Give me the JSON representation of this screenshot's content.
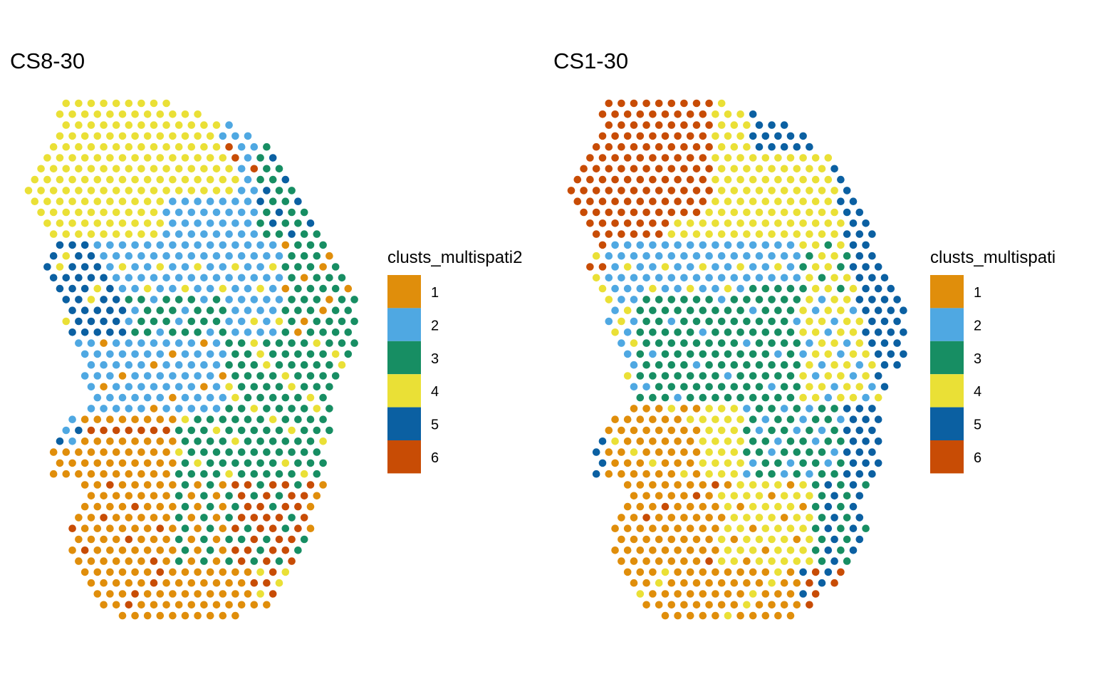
{
  "cluster_colors": {
    "1": "#E08E0B",
    "2": "#4FA8E2",
    "3": "#178E63",
    "4": "#EAE036",
    "5": "#0B60A2",
    "6": "#C84C05"
  },
  "chart_data": [
    {
      "type": "scatter",
      "title": "CS8-30",
      "legend": {
        "title": "clusts_multispati2",
        "placement": "right",
        "entries": [
          "1",
          "2",
          "3",
          "4",
          "5",
          "6"
        ]
      },
      "grid": false,
      "axes": "none"
    },
    {
      "type": "scatter",
      "title": "CS1-30",
      "legend": {
        "title": "clusts_multispati",
        "placement": "right",
        "entries": [
          "1",
          "2",
          "3",
          "4",
          "5",
          "6"
        ]
      },
      "grid": false,
      "axes": "none"
    }
  ]
}
